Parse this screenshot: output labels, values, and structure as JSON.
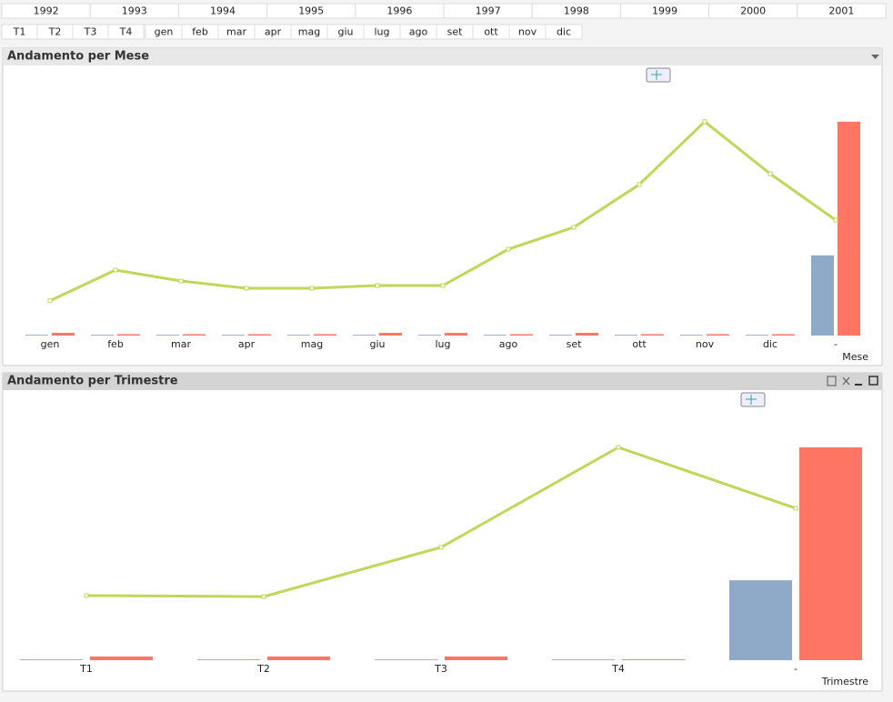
{
  "years": [
    "1992",
    "1993",
    "1994",
    "1995",
    "1996",
    "1997",
    "1998",
    "1999",
    "2000",
    "2001"
  ],
  "periods": [
    "T1",
    "T2",
    "T3",
    "T4",
    "gen",
    "feb",
    "mar",
    "apr",
    "mag",
    "giu",
    "lug",
    "ago",
    "set",
    "ott",
    "nov",
    "dic"
  ],
  "chart_data": [
    {
      "type": "combo",
      "title": "Andamento per Mese",
      "x_label": "Mese",
      "categories": [
        "gen",
        "feb",
        "mar",
        "apr",
        "mag",
        "giu",
        "lug",
        "ago",
        "set",
        "ott",
        "nov",
        "dic",
        "-"
      ],
      "ylim": [
        0,
        100
      ],
      "series": [
        {
          "type": "bar",
          "color": "#8faac8",
          "values": [
            0.3,
            0.3,
            0.3,
            0.3,
            0.3,
            0.3,
            0.3,
            0.3,
            0.3,
            0.3,
            0.3,
            0.3,
            30
          ]
        },
        {
          "type": "bar",
          "color": "#ff7563",
          "values": [
            1,
            0.5,
            0.5,
            0.5,
            0.5,
            1,
            1,
            0.5,
            1,
            0.5,
            0.5,
            0.5,
            80
          ]
        },
        {
          "type": "line",
          "color": "#c3d65a",
          "values": [
            13,
            24.5,
            20.4,
            17.7,
            17.7,
            18.7,
            18.7,
            32.3,
            40.5,
            56.5,
            80,
            60.5,
            43.2
          ]
        }
      ]
    },
    {
      "type": "combo",
      "title": "Andamento per Trimestre",
      "x_label": "Trimestre",
      "categories": [
        "T1",
        "T2",
        "T3",
        "T4",
        "-"
      ],
      "ylim": [
        0,
        100
      ],
      "series": [
        {
          "type": "bar",
          "color": "#8faac8",
          "values": [
            0.3,
            0.3,
            0.3,
            0.3,
            30.3
          ]
        },
        {
          "type": "bar",
          "color": "#ff7563",
          "values": [
            1.4,
            1.4,
            1.4,
            0.3,
            80.7
          ]
        },
        {
          "type": "line",
          "color": "#c3d65a",
          "values": [
            24.5,
            24.1,
            42.8,
            80.7,
            57.6
          ]
        }
      ]
    }
  ]
}
